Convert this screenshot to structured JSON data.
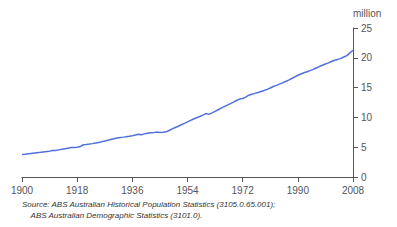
{
  "chart_data": {
    "type": "line",
    "ylabel": "million",
    "annotations": [
      "Source: ABS Australian Historical Population Statistics (3105.0.65.001);",
      "    ABS Australian Demographic Statistics (3101.0)."
    ],
    "x": [
      1900,
      1901,
      1902,
      1903,
      1904,
      1905,
      1906,
      1907,
      1908,
      1909,
      1910,
      1911,
      1912,
      1913,
      1914,
      1915,
      1916,
      1917,
      1918,
      1919,
      1920,
      1921,
      1922,
      1923,
      1924,
      1925,
      1926,
      1927,
      1928,
      1929,
      1930,
      1931,
      1932,
      1933,
      1934,
      1935,
      1936,
      1937,
      1938,
      1939,
      1940,
      1941,
      1942,
      1943,
      1944,
      1945,
      1946,
      1947,
      1948,
      1949,
      1950,
      1951,
      1952,
      1953,
      1954,
      1955,
      1956,
      1957,
      1958,
      1959,
      1960,
      1961,
      1962,
      1963,
      1964,
      1965,
      1966,
      1967,
      1968,
      1969,
      1970,
      1971,
      1972,
      1973,
      1974,
      1975,
      1976,
      1977,
      1978,
      1979,
      1980,
      1981,
      1982,
      1983,
      1984,
      1985,
      1986,
      1987,
      1988,
      1989,
      1990,
      1991,
      1992,
      1993,
      1994,
      1995,
      1996,
      1997,
      1998,
      1999,
      2000,
      2001,
      2002,
      2003,
      2004,
      2005,
      2006,
      2007,
      2008
    ],
    "values": [
      3.77,
      3.83,
      3.9,
      3.96,
      4.02,
      4.08,
      4.14,
      4.21,
      4.27,
      4.34,
      4.43,
      4.46,
      4.55,
      4.64,
      4.74,
      4.84,
      4.94,
      4.97,
      5.01,
      5.1,
      5.41,
      5.46,
      5.52,
      5.6,
      5.7,
      5.8,
      5.91,
      6.03,
      6.16,
      6.3,
      6.43,
      6.55,
      6.63,
      6.69,
      6.76,
      6.84,
      6.93,
      7.05,
      7.16,
      7.08,
      7.24,
      7.35,
      7.42,
      7.47,
      7.53,
      7.48,
      7.52,
      7.58,
      7.8,
      8.08,
      8.31,
      8.52,
      8.77,
      9.0,
      9.24,
      9.5,
      9.74,
      9.95,
      10.16,
      10.39,
      10.64,
      10.51,
      10.77,
      11.0,
      11.28,
      11.55,
      11.8,
      12.06,
      12.32,
      12.57,
      12.84,
      13.07,
      13.18,
      13.4,
      13.72,
      13.89,
      14.03,
      14.19,
      14.36,
      14.52,
      14.7,
      14.93,
      15.18,
      15.37,
      15.58,
      15.79,
      16.02,
      16.26,
      16.53,
      16.81,
      17.07,
      17.29,
      17.49,
      17.67,
      17.85,
      18.05,
      18.29,
      18.53,
      18.75,
      18.97,
      19.15,
      19.38,
      19.58,
      19.73,
      19.91,
      20.13,
      20.36,
      20.82,
      21.26
    ],
    "xlim": [
      1900,
      2008
    ],
    "ylim": [
      0,
      25
    ],
    "xticks": [
      1900,
      1918,
      1936,
      1954,
      1972,
      1990,
      2008
    ],
    "yticks": [
      0,
      5,
      10,
      15,
      20,
      25
    ],
    "grid": false
  }
}
